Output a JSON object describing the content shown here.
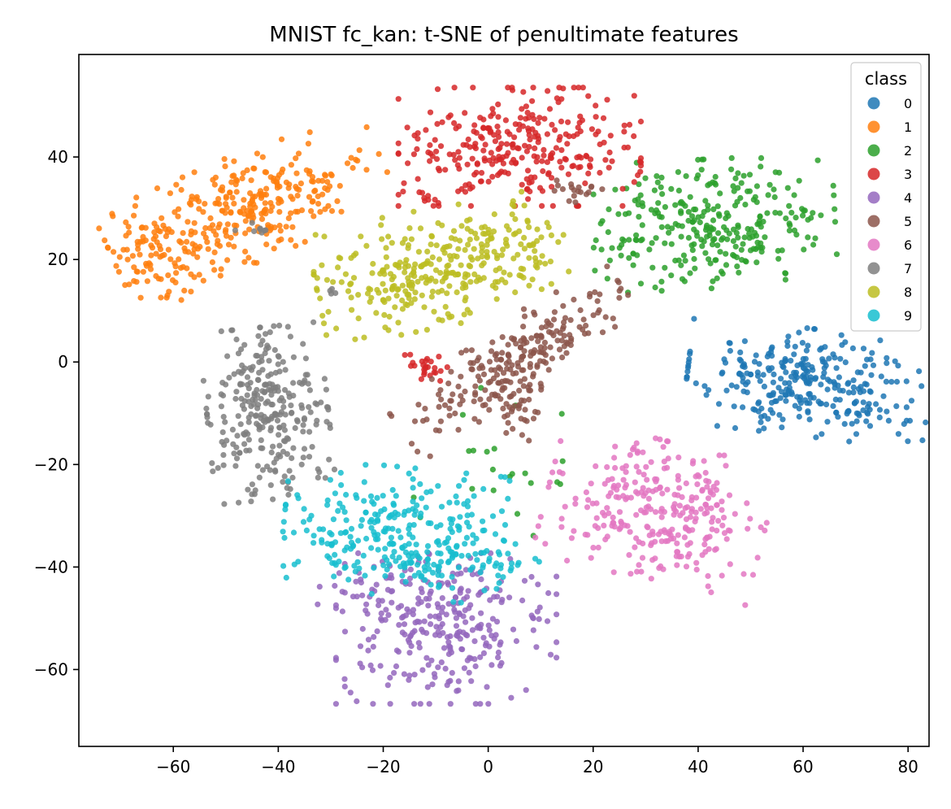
{
  "chart_data": {
    "type": "scatter",
    "title": "MNIST fc_kan: t-SNE of penultimate features",
    "xlabel": "",
    "ylabel": "",
    "xlim": [
      -78,
      84
    ],
    "ylim": [
      -75,
      60
    ],
    "xticks": [
      -60,
      -40,
      -20,
      0,
      20,
      40,
      60,
      80
    ],
    "yticks": [
      -60,
      -40,
      -20,
      0,
      20,
      40
    ],
    "xtick_labels": [
      "−60",
      "−40",
      "−20",
      "0",
      "20",
      "40",
      "60",
      "80"
    ],
    "ytick_labels": [
      "−60",
      "−40",
      "−20",
      "0",
      "20",
      "40"
    ],
    "grid": false,
    "legend": {
      "title": "class",
      "placement": "top-right"
    },
    "point_alpha": 0.85,
    "series": [
      {
        "name": "0",
        "color": "#1f77b4",
        "clusters": [
          {
            "center": [
              61,
              -4
            ],
            "spread": [
              11,
              5
            ],
            "count": 300,
            "rotation": -0.12
          }
        ]
      },
      {
        "name": "1",
        "color": "#ff7f0e",
        "clusters": [
          {
            "center": [
              -46,
              30
            ],
            "spread": [
              13,
              5
            ],
            "count": 300,
            "rotation": 0.42
          },
          {
            "center": [
              -64,
              20
            ],
            "spread": [
              3.5,
              4
            ],
            "count": 60,
            "rotation": 0
          }
        ]
      },
      {
        "name": "2",
        "color": "#2ca02c",
        "clusters": [
          {
            "center": [
              43,
              27
            ],
            "spread": [
              11,
              6
            ],
            "count": 290,
            "rotation": 0.05
          },
          {
            "center": [
              2,
              -20
            ],
            "spread": [
              8,
              9
            ],
            "count": 22,
            "rotation": 0
          }
        ]
      },
      {
        "name": "3",
        "color": "#d62728",
        "clusters": [
          {
            "center": [
              6,
              42
            ],
            "spread": [
              11,
              5.5
            ],
            "count": 290,
            "rotation": 0
          },
          {
            "center": [
              -12,
              -1
            ],
            "spread": [
              2,
              1.5
            ],
            "count": 25,
            "rotation": 0
          },
          {
            "center": [
              -11,
              32
            ],
            "spread": [
              1.5,
              1
            ],
            "count": 8,
            "rotation": 0
          }
        ]
      },
      {
        "name": "4",
        "color": "#9467bd",
        "clusters": [
          {
            "center": [
              -8,
              -52
            ],
            "spread": [
              10,
              7
            ],
            "count": 280,
            "rotation": 0
          },
          {
            "center": [
              -22,
              -44
            ],
            "spread": [
              5,
              2.5
            ],
            "count": 30,
            "rotation": 0
          }
        ]
      },
      {
        "name": "5",
        "color": "#8c564b",
        "clusters": [
          {
            "center": [
              5,
              0
            ],
            "spread": [
              12,
              3.5
            ],
            "count": 230,
            "rotation": 0.62
          },
          {
            "center": [
              6,
              -11
            ],
            "spread": [
              1.8,
              3
            ],
            "count": 30,
            "rotation": 0
          },
          {
            "center": [
              17,
              33
            ],
            "spread": [
              3,
              1.5
            ],
            "count": 18,
            "rotation": 0
          }
        ]
      },
      {
        "name": "6",
        "color": "#e377c2",
        "clusters": [
          {
            "center": [
              32,
              -29
            ],
            "spread": [
              10,
              6.5
            ],
            "count": 290,
            "rotation": -0.25
          }
        ]
      },
      {
        "name": "7",
        "color": "#7f7f7f",
        "clusters": [
          {
            "center": [
              -42,
              -10
            ],
            "spread": [
              5.5,
              8
            ],
            "count": 280,
            "rotation": 0.1
          },
          {
            "center": [
              -44,
              26
            ],
            "spread": [
              2,
              0.6
            ],
            "count": 8,
            "rotation": 0
          },
          {
            "center": [
              -30,
              14
            ],
            "spread": [
              1,
              0.5
            ],
            "count": 4,
            "rotation": 0
          }
        ]
      },
      {
        "name": "8",
        "color": "#bcbd22",
        "clusters": [
          {
            "center": [
              -12,
              18
            ],
            "spread": [
              10,
              5.5
            ],
            "count": 270,
            "rotation": 0.2
          },
          {
            "center": [
              4,
              22
            ],
            "spread": [
              6,
              4
            ],
            "count": 60,
            "rotation": 0
          }
        ]
      },
      {
        "name": "9",
        "color": "#17becf",
        "clusters": [
          {
            "center": [
              -18,
              -33
            ],
            "spread": [
              10,
              6
            ],
            "count": 260,
            "rotation": -0.1
          },
          {
            "center": [
              -5,
              -39
            ],
            "spread": [
              7,
              2.5
            ],
            "count": 60,
            "rotation": 0
          }
        ]
      }
    ]
  }
}
